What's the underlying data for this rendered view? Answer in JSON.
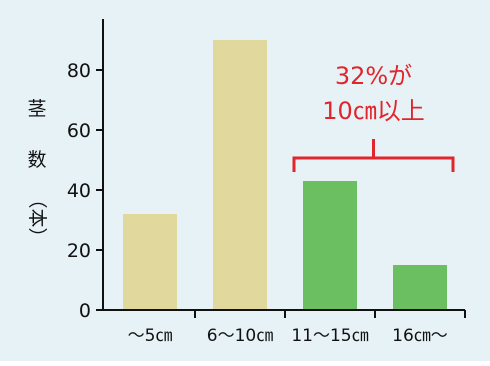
{
  "chart_data": {
    "type": "bar",
    "categories": [
      "～5㎝",
      "6～10㎝",
      "11～15㎝",
      "16㎝～"
    ],
    "values": [
      32,
      90,
      43,
      15
    ],
    "ylabel": "茎数（本）",
    "ylabel_chars": [
      "茎",
      "数",
      "（本）"
    ],
    "yticks": [
      0,
      20,
      40,
      60,
      80
    ],
    "ylim": [
      0,
      97
    ],
    "grid": false,
    "legend": "none",
    "annotation": {
      "lines": [
        "32%が",
        "10㎝以上"
      ],
      "covers": [
        "11～15㎝",
        "16㎝～"
      ]
    },
    "colors": {
      "bar_short": "#e0d89c",
      "bar_long": "#6cbf60",
      "annotation": "#e0262c",
      "axis": "#111111",
      "background": "#e6f2f6"
    },
    "highlighted_categories": [
      "11～15㎝",
      "16㎝～"
    ]
  }
}
